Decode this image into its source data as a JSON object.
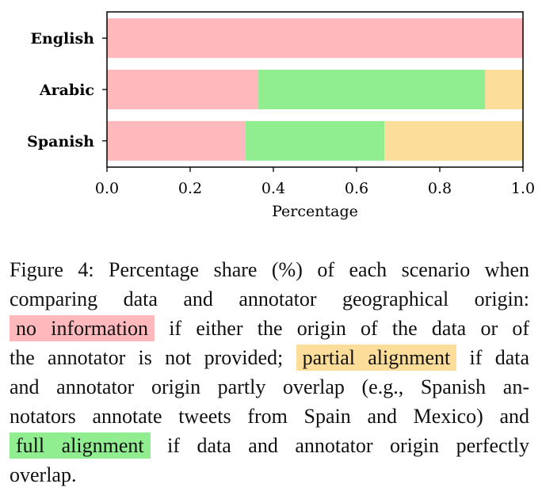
{
  "chart_data": {
    "type": "bar",
    "orientation": "horizontal",
    "stacked": true,
    "categories": [
      "English",
      "Arabic",
      "Spanish"
    ],
    "series": [
      {
        "key": "no information",
        "color": "#ffb9bd",
        "values": [
          1.0,
          0.364,
          0.333
        ]
      },
      {
        "key": "full alignment",
        "color": "#90ee90",
        "values": [
          0.0,
          0.545,
          0.334
        ]
      },
      {
        "key": "partial alignment",
        "color": "#fddd9a",
        "values": [
          0.0,
          0.091,
          0.333
        ]
      }
    ],
    "xlabel": "Percentage",
    "xlim": [
      0,
      1
    ],
    "xticks": [
      "0.0",
      "0.2",
      "0.4",
      "0.6",
      "0.8",
      "1.0"
    ],
    "grid": false
  },
  "caption": {
    "lines": [
      [
        {
          "t": "Figure 4: Percentage share (%) of each scenario when"
        }
      ],
      [
        {
          "t": "comparing data and annotator geographical origin:"
        }
      ],
      [
        {
          "t": "no information",
          "hl": "#ffb9bd"
        },
        {
          "t": " if either the origin of the data or of"
        }
      ],
      [
        {
          "t": "the annotator is not provided; "
        },
        {
          "t": "partial alignment",
          "hl": "#fddd9a"
        },
        {
          "t": " if data"
        }
      ],
      [
        {
          "t": "and annotator origin partly overlap (e.g., Spanish an-"
        }
      ],
      [
        {
          "t": "notators annotate tweets from Spain and Mexico) and"
        }
      ],
      [
        {
          "t": "full alignment",
          "hl": "#90ee90"
        },
        {
          "t": " if data and annotator origin perfectly"
        }
      ],
      [
        {
          "t": "overlap."
        }
      ]
    ]
  }
}
